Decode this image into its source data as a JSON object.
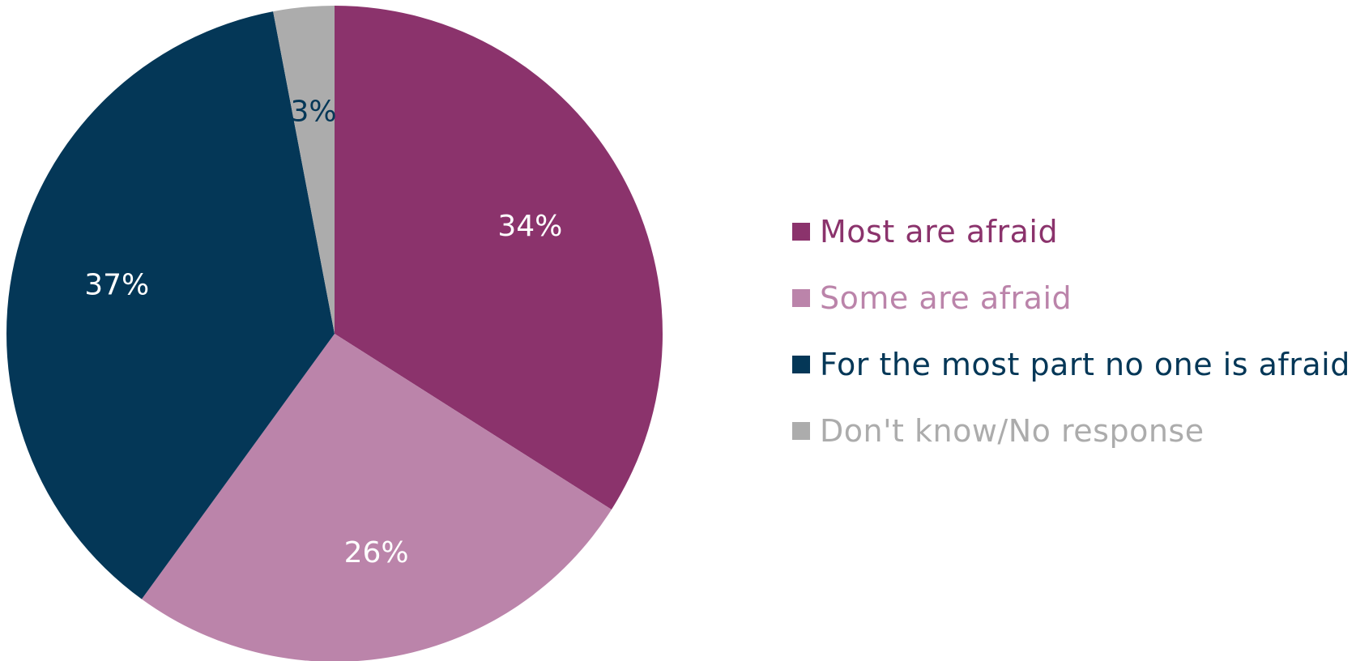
{
  "chart_data": {
    "type": "pie",
    "title": "",
    "legend_position": "right",
    "slices": [
      {
        "label": "Most are afraid",
        "value": 34,
        "display": "34%",
        "color": "#8b336c",
        "label_color": "#ffffff"
      },
      {
        "label": "Some are afraid",
        "value": 26,
        "display": "26%",
        "color": "#bb84aa",
        "label_color": "#ffffff"
      },
      {
        "label": "For the most part no one is afraid",
        "value": 37,
        "display": "37%",
        "color": "#043757",
        "label_color": "#ffffff"
      },
      {
        "label": "Don't know/No response",
        "value": 3,
        "display": "3%",
        "color": "#acacac",
        "label_color": "#043757"
      }
    ]
  }
}
